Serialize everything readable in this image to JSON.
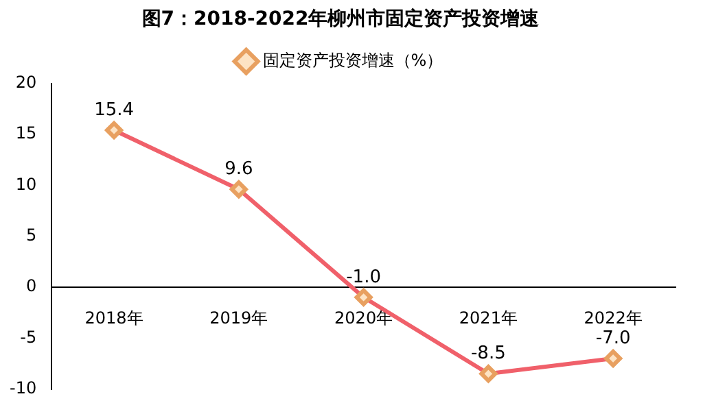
{
  "chart_data": {
    "type": "line",
    "title": "图7：2018-2022年柳州市固定资产投资增速",
    "categories": [
      "2018年",
      "2019年",
      "2020年",
      "2021年",
      "2022年"
    ],
    "series": [
      {
        "name": "固定资产投资增速（%）",
        "color": "#f0606a",
        "values": [
          15.4,
          9.6,
          -1.0,
          -8.5,
          -7.0
        ],
        "value_labels": [
          "15.4",
          "9.6",
          "-1.0",
          "-8.5",
          "-7.0"
        ]
      }
    ],
    "ylim": [
      -10,
      20
    ],
    "yticks": [
      -10,
      -5,
      0,
      5,
      10,
      15,
      20
    ],
    "grid": false,
    "legend": "top",
    "marker": "diamond"
  }
}
